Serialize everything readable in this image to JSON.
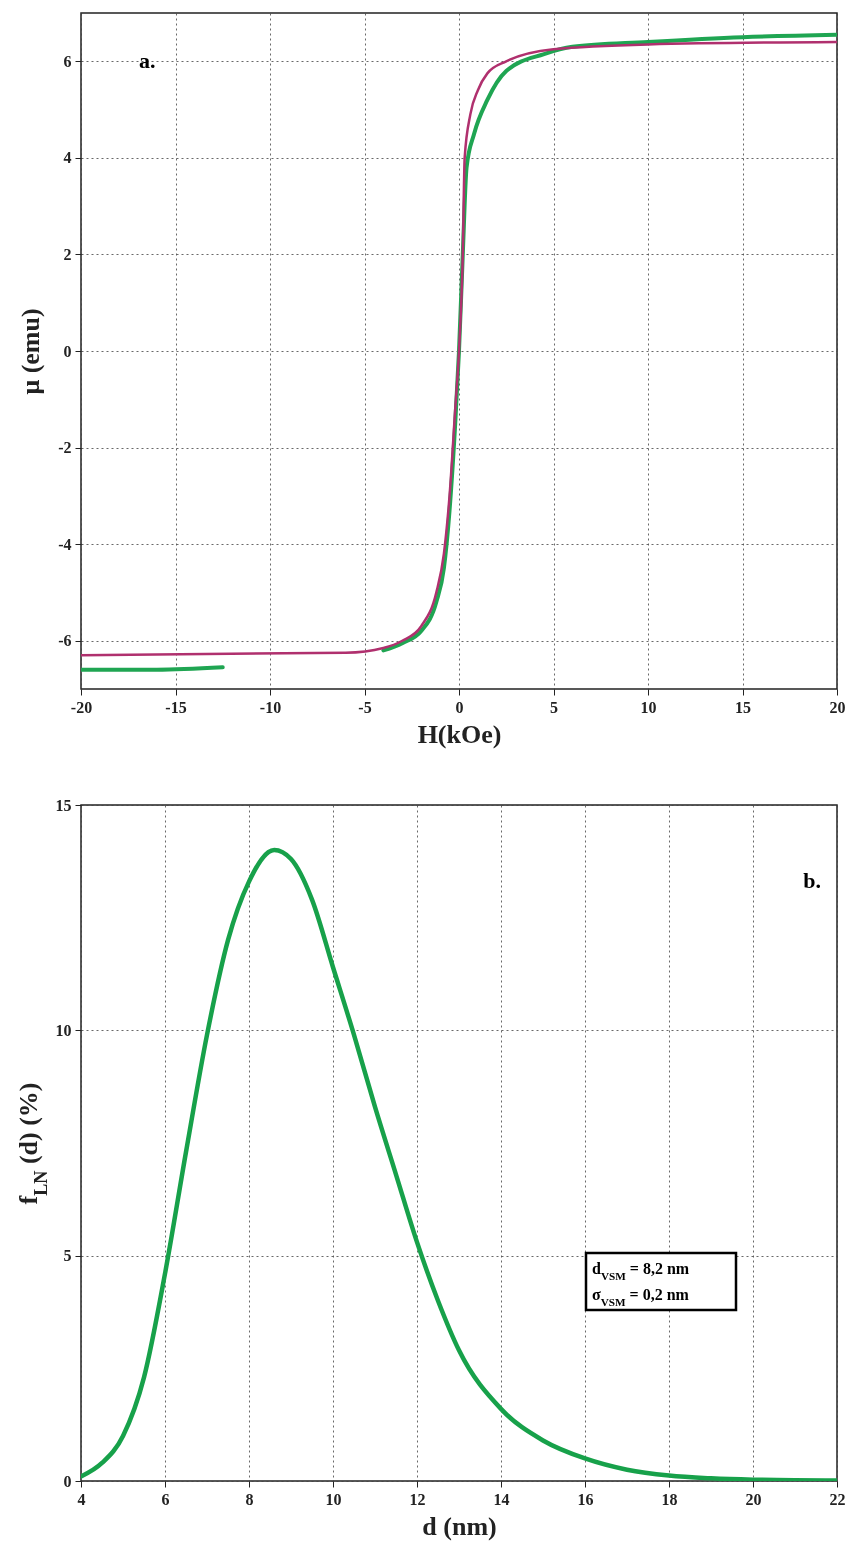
{
  "chart_data": [
    {
      "type": "line",
      "xlabel": "H(kOe)",
      "ylabel": "μ (emu)",
      "annotations": [
        "a."
      ],
      "grid": true,
      "xlim": [
        -20,
        20
      ],
      "xticks": [
        -20,
        -15,
        -10,
        -5,
        0,
        5,
        10,
        15,
        20
      ],
      "ylim": [
        -7,
        7
      ],
      "yticks": [
        -6,
        -4,
        -2,
        0,
        2,
        4,
        6
      ],
      "series": [
        {
          "color": "#1fa552",
          "x": [
            -20,
            -16,
            -12.5,
            -8,
            -4,
            -3,
            -2,
            -1.2,
            -0.8,
            -0.5,
            -0.2,
            0,
            0.2,
            0.4,
            0.8,
            1.5,
            2.5,
            4.5,
            6,
            10,
            15,
            20
          ],
          "values": [
            -6.6,
            -6.6,
            -6.55,
            null,
            -6.2,
            -6.05,
            -5.8,
            -5.2,
            -4.5,
            -3.3,
            -1.5,
            0,
            2,
            3.8,
            4.5,
            5.2,
            5.8,
            6.15,
            6.3,
            6.4,
            6.5,
            6.55
          ]
        },
        {
          "color": "#b0306e",
          "x": [
            -20,
            -6,
            -4,
            -3,
            -2,
            -1.2,
            -0.8,
            -0.5,
            -0.2,
            0,
            0.2,
            0.3,
            0.6,
            1,
            1.5,
            2.5,
            5,
            10,
            20
          ],
          "values": [
            -6.3,
            -6.25,
            -6.15,
            -6.0,
            -5.7,
            -5.0,
            -4.2,
            -3,
            -1.2,
            0,
            2,
            4,
            4.9,
            5.4,
            5.75,
            6.0,
            6.25,
            6.35,
            6.4
          ]
        }
      ]
    },
    {
      "type": "line",
      "xlabel": "d (nm)",
      "ylabel": "f$_{LN}$ (d) (%)",
      "annotations": [
        "b.",
        "d$_{VSM}$ = 8,2 nm",
        "σ$_{VSM}$ = 0,2 nm"
      ],
      "grid": true,
      "xlim": [
        4,
        22
      ],
      "xticks": [
        4,
        6,
        8,
        10,
        12,
        14,
        16,
        18,
        20,
        22
      ],
      "ylim": [
        0,
        15
      ],
      "yticks": [
        0,
        5,
        10,
        15
      ],
      "series": [
        {
          "color": "#17a14a",
          "x": [
            4,
            4.5,
            5,
            5.5,
            6,
            6.5,
            7,
            7.5,
            8,
            8.6,
            9,
            9.5,
            10,
            10.5,
            11,
            11.5,
            12,
            12.5,
            13,
            14,
            15,
            16,
            17,
            18,
            19,
            20,
            22
          ],
          "values": [
            0.1,
            0.4,
            1.0,
            2.3,
            4.6,
            7.3,
            9.9,
            12.0,
            13.3,
            14.0,
            13.8,
            12.9,
            11.4,
            9.9,
            8.3,
            6.8,
            5.3,
            4.0,
            2.9,
            1.6,
            0.9,
            0.5,
            0.25,
            0.12,
            0.06,
            0.03,
            0.01
          ]
        }
      ]
    }
  ]
}
